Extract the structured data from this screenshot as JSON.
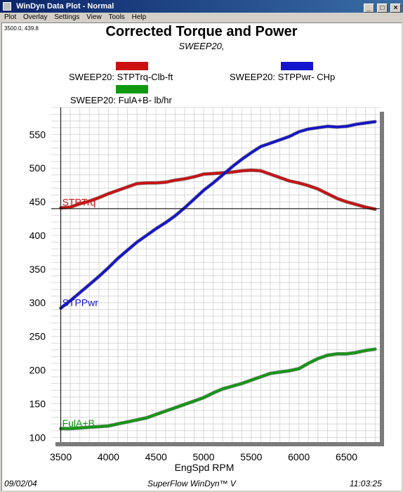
{
  "window": {
    "title": "WinDyn Data Plot - Normal",
    "buttons": [
      "_",
      "□",
      "×"
    ]
  },
  "menu": [
    "Plot",
    "Overlay",
    "Settings",
    "View",
    "Tools",
    "Help"
  ],
  "cursor_readout": "3500.0, 439.8",
  "colors": {
    "torque": "#cc1010",
    "power": "#1414cc",
    "fuel": "#119911",
    "grid": "#d8d8d8"
  },
  "footer": {
    "date": "09/02/04",
    "center": "SuperFlow WinDyn™ V",
    "time": "11:03:25"
  },
  "chart_data": {
    "type": "line",
    "title": "Corrected Torque and Power",
    "subtitle": "SWEEP20,",
    "xlabel": "EngSpd  RPM",
    "ylabel": "",
    "xlim": [
      3400,
      6850
    ],
    "ylim": [
      93,
      590
    ],
    "x_ticks": [
      3500,
      4000,
      4500,
      5000,
      5500,
      6000,
      6500
    ],
    "y_ticks": [
      100,
      150,
      200,
      250,
      300,
      350,
      400,
      450,
      500,
      550
    ],
    "grid": true,
    "legend_placement": "top",
    "cursor": {
      "x": 3500,
      "y": 439.8
    },
    "series": [
      {
        "key": "torque",
        "name": "SWEEP20: STPTrq-Clb-ft",
        "label": "STPTrq",
        "x": [
          3500,
          3600,
          3700,
          3800,
          3900,
          4000,
          4100,
          4200,
          4300,
          4400,
          4500,
          4600,
          4700,
          4800,
          4900,
          5000,
          5100,
          5200,
          5300,
          5400,
          5500,
          5600,
          5700,
          5800,
          5900,
          6000,
          6100,
          6200,
          6300,
          6400,
          6500,
          6600,
          6700,
          6800
        ],
        "values": [
          441,
          442,
          447,
          451,
          456,
          462,
          467,
          472,
          477,
          478,
          478,
          479,
          482,
          484,
          487,
          491,
          492,
          493,
          494,
          496,
          497,
          496,
          491,
          486,
          481,
          478,
          474,
          469,
          462,
          455,
          450,
          446,
          442,
          439
        ]
      },
      {
        "key": "power",
        "name": "SWEEP20: STPPwr- CHp",
        "label": "STPPwr",
        "x": [
          3500,
          3600,
          3700,
          3800,
          3900,
          4000,
          4100,
          4200,
          4300,
          4400,
          4500,
          4600,
          4700,
          4800,
          4900,
          5000,
          5100,
          5200,
          5300,
          5400,
          5500,
          5600,
          5700,
          5800,
          5900,
          6000,
          6100,
          6200,
          6300,
          6400,
          6500,
          6600,
          6700,
          6800
        ],
        "values": [
          292,
          303,
          315,
          327,
          339,
          352,
          366,
          378,
          390,
          400,
          410,
          419,
          429,
          441,
          454,
          467,
          478,
          490,
          502,
          513,
          523,
          532,
          537,
          542,
          547,
          554,
          558,
          560,
          562,
          561,
          562,
          565,
          567,
          569
        ]
      },
      {
        "key": "fuel",
        "name": "SWEEP20: FulA+B- lb/hr",
        "label": "FulA+B",
        "x": [
          3500,
          3600,
          3700,
          3800,
          3900,
          4000,
          4100,
          4200,
          4300,
          4400,
          4500,
          4600,
          4700,
          4800,
          4900,
          5000,
          5100,
          5200,
          5300,
          5400,
          5500,
          5600,
          5700,
          5800,
          5900,
          6000,
          6100,
          6200,
          6300,
          6400,
          6500,
          6600,
          6700,
          6800
        ],
        "values": [
          113,
          113,
          114,
          115,
          116,
          117,
          120,
          123,
          126,
          129,
          134,
          139,
          144,
          149,
          154,
          159,
          166,
          172,
          176,
          180,
          185,
          190,
          195,
          197,
          199,
          202,
          210,
          217,
          222,
          224,
          224,
          226,
          229,
          231
        ]
      }
    ]
  }
}
